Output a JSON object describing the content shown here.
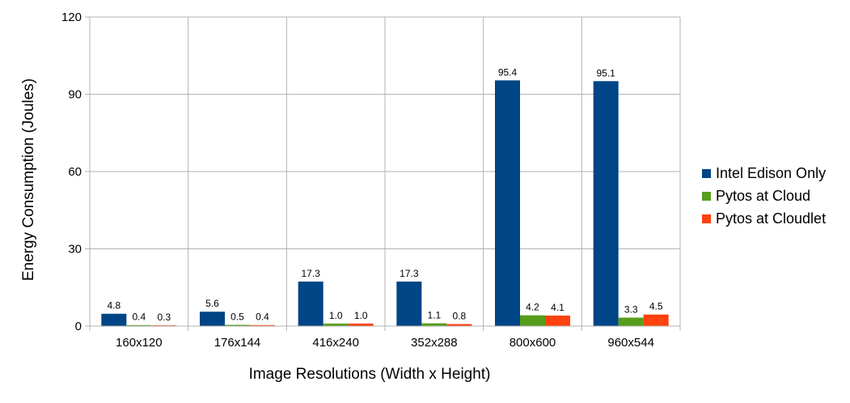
{
  "chart_data": {
    "type": "bar",
    "title": "",
    "xlabel": "Image Resolutions (Width x Height)",
    "ylabel": "Energy Consumption (Joules)",
    "ylim": [
      0,
      120
    ],
    "yticks": [
      0,
      30,
      60,
      90,
      120
    ],
    "grid": true,
    "legend_position": "right",
    "categories": [
      "160x120",
      "176x144",
      "416x240",
      "352x288",
      "800x600",
      "960x544"
    ],
    "series": [
      {
        "name": "Intel Edison Only",
        "color": "#004586",
        "values": [
          4.8,
          5.6,
          17.3,
          17.3,
          95.4,
          95.1
        ],
        "labels": [
          "4.8",
          "5.6",
          "17.3",
          "17.3",
          "95.4",
          "95.1"
        ]
      },
      {
        "name": "Pytos at Cloud",
        "color": "#579d1c",
        "values": [
          0.4,
          0.5,
          1.0,
          1.1,
          4.2,
          3.3
        ],
        "labels": [
          "0.4",
          "0.5",
          "1.0",
          "1.1",
          "4.2",
          "3.3"
        ]
      },
      {
        "name": "Pytos at Cloudlet",
        "color": "#ff420e",
        "values": [
          0.3,
          0.4,
          1.0,
          0.8,
          4.1,
          4.5
        ],
        "labels": [
          "0.3",
          "0.4",
          "1.0",
          "0.8",
          "4.1",
          "4.5"
        ]
      }
    ]
  }
}
